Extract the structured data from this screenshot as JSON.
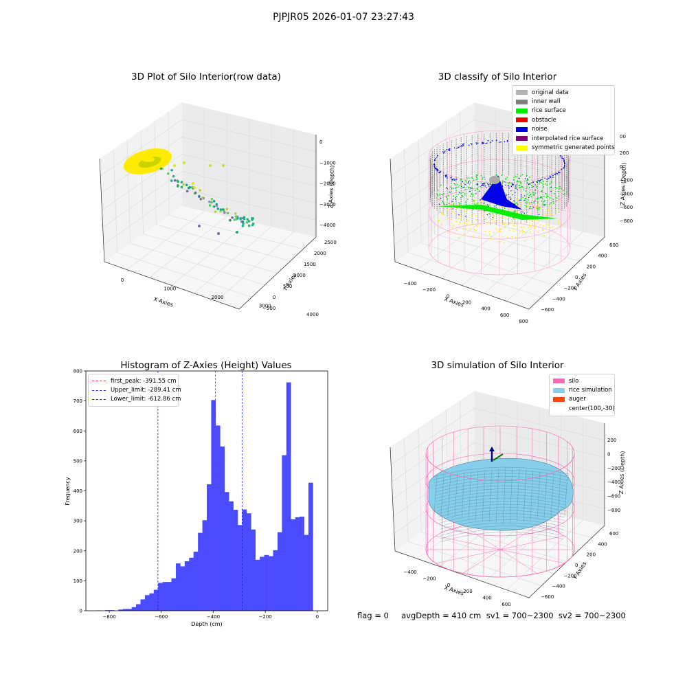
{
  "suptitle": "PJPJR05 2026-01-07 23:27:43",
  "footer": "flag = 0     avgDepth = 410 cm  sv1 = 700~2300  sv2 = 700~2300",
  "colors": {
    "yellow": "#ffeb00",
    "green": "#00ee00",
    "blue": "#0000e6",
    "gray": "#8a8a8a",
    "pink": "#ff69b4",
    "sky": "#87ceeb",
    "hist": "#4b4bff",
    "red": "#e62020",
    "dashblue": "#2020e6"
  },
  "chart_data": [
    {
      "type": "scatter",
      "title": "3D Plot of Silo Interior(row data)",
      "xlabel": "X Axies",
      "ylabel": "Y Axies",
      "zlabel": "Z Axies (Depth)",
      "x_ticks": [
        "0",
        "1000",
        "2000",
        "3000",
        "4000"
      ],
      "y_ticks": [
        "−500",
        "0",
        "500",
        "1000",
        "1500",
        "2000",
        "2500"
      ],
      "z_ticks": [
        "0",
        "−1000",
        "−2000",
        "−3000",
        "−4000"
      ]
    },
    {
      "type": "scatter",
      "title": "3D classify of Silo Interior",
      "xlabel": "X Axies",
      "ylabel": "Y Axies",
      "zlabel": "Z Axies (Depth)",
      "x_ticks": [
        "−400",
        "−200",
        "0",
        "200",
        "400",
        "600",
        "800"
      ],
      "y_ticks": [
        "−600",
        "−400",
        "−200",
        "0",
        "200",
        "400",
        "600"
      ],
      "z_ticks": [
        "200",
        "0",
        "−200",
        "−400",
        "−600",
        "−800"
      ],
      "z_top_tick": "00",
      "legend": [
        {
          "label": "original data",
          "color": "#b3b3b3"
        },
        {
          "label": "inner wall",
          "color": "#808080"
        },
        {
          "label": "rice surface",
          "color": "#00ee00"
        },
        {
          "label": "obstacle",
          "color": "#ee0000"
        },
        {
          "label": "noise",
          "color": "#0000dd"
        },
        {
          "label": "interpolated rice surface",
          "color": "#800080"
        },
        {
          "label": "symmetric generated points",
          "color": "#ffff00"
        }
      ]
    },
    {
      "type": "bar",
      "title": "Histogram of Z-Axies (Height) Values",
      "xlabel": "Depth (cm)",
      "ylabel": "Frequency",
      "xlim": [
        -890,
        40
      ],
      "ylim": [
        0,
        800
      ],
      "x_ticks": [
        {
          "v": -800,
          "t": "−800"
        },
        {
          "v": -600,
          "t": "−600"
        },
        {
          "v": -400,
          "t": "−400"
        },
        {
          "v": -200,
          "t": "−200"
        },
        {
          "v": 0,
          "t": "0"
        }
      ],
      "y_ticks": [
        0,
        100,
        200,
        300,
        400,
        500,
        600,
        700,
        800
      ],
      "bin_start": -850,
      "bin_width": 17,
      "values": [
        1,
        0,
        2,
        2,
        0,
        4,
        6,
        6,
        12,
        22,
        38,
        52,
        58,
        70,
        93,
        96,
        96,
        108,
        158,
        148,
        165,
        177,
        197,
        260,
        302,
        422,
        703,
        618,
        548,
        396,
        365,
        337,
        286,
        338,
        325,
        271,
        170,
        180,
        186,
        182,
        202,
        262,
        519,
        762,
        305,
        312,
        314,
        253,
        427
      ],
      "lines": [
        {
          "label": "first_peak: -391.55 cm",
          "value": -391.55,
          "color": "#e62020"
        },
        {
          "label": "Upper_limit: -289.41 cm",
          "value": -289.41,
          "color": "#2020e6"
        },
        {
          "label": "Lower_limit: -612.86 cm",
          "value": -612.86,
          "color": "#2020e6"
        }
      ]
    },
    {
      "type": "area",
      "title": "3D simulation of Silo Interior",
      "xlabel": "X Axies",
      "ylabel": "Y Axies",
      "zlabel": "Z Axies (Depth)",
      "x_ticks": [
        "−400",
        "−200",
        "0",
        "200",
        "400",
        "600"
      ],
      "y_ticks": [
        "−600",
        "−400",
        "−200",
        "0",
        "200",
        "400",
        "600"
      ],
      "z_ticks": [
        "200",
        "0",
        "−200",
        "−400",
        "−600",
        "−800"
      ],
      "legend": [
        {
          "label": "silo",
          "color": "#ff69b4"
        },
        {
          "label": "rice simulation",
          "color": "#87ceeb"
        },
        {
          "label": "auger",
          "color": "#ff4500"
        },
        {
          "label": "center(100,-30)",
          "color": ""
        }
      ]
    }
  ]
}
